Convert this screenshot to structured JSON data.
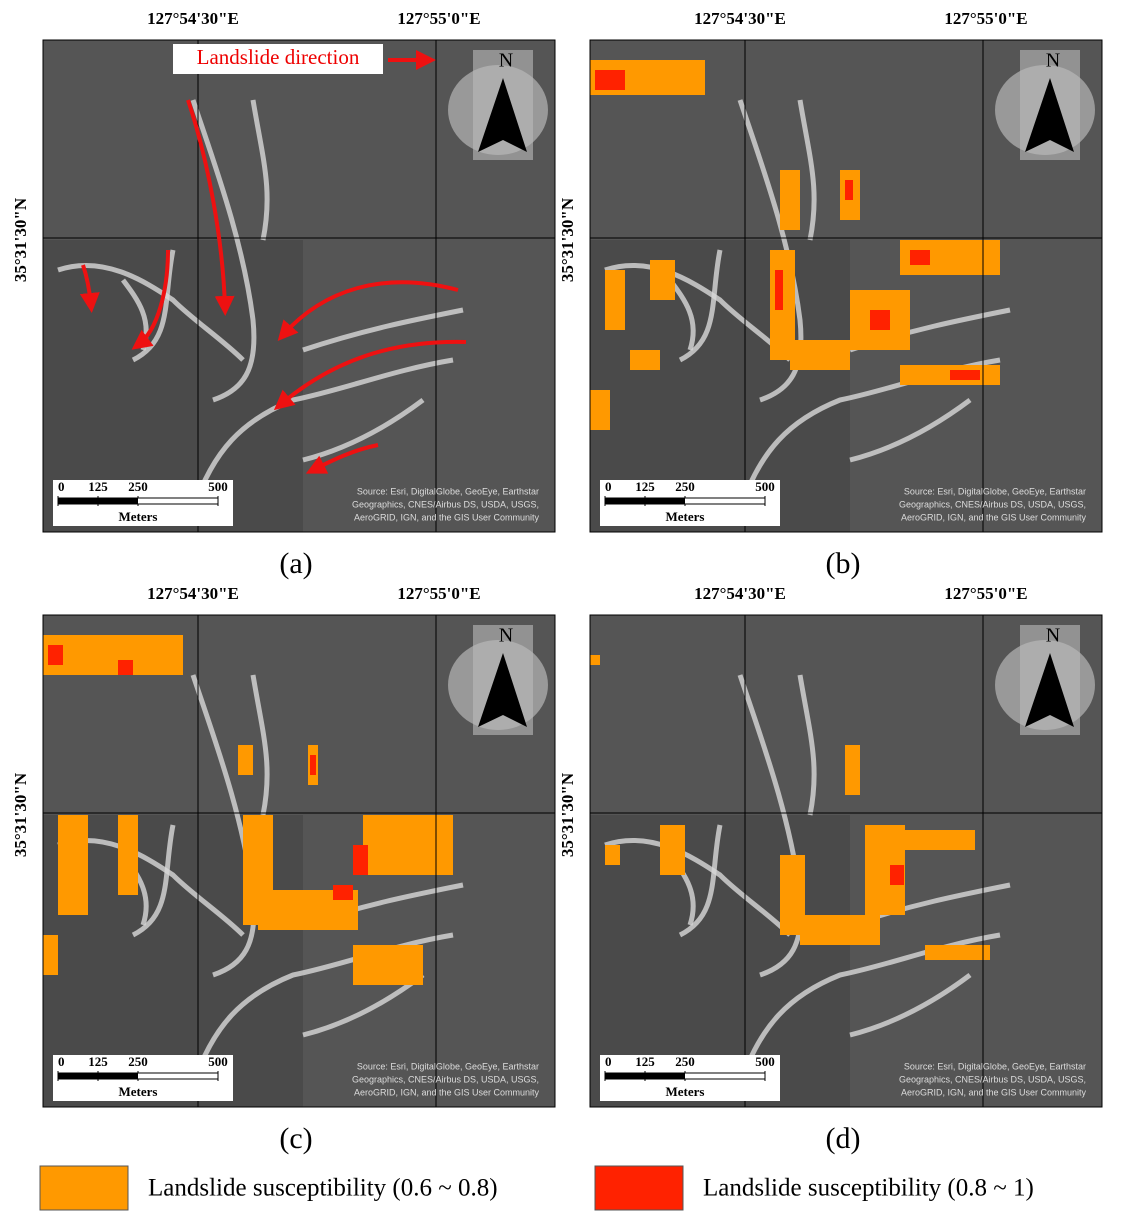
{
  "panels": [
    {
      "label": "(a)",
      "lon_labels": [
        "127°54'30\"E",
        "127°55'0\"E"
      ],
      "lat_label": "35°31'30\"N",
      "north": "N",
      "scale_ticks": [
        0,
        125,
        250,
        500
      ],
      "scale_unit": "Meters",
      "attribution": [
        "Source: Esri, DigitalGlobe, GeoEye, Earthstar",
        "Geographics, CNES/Airbus DS, USDA, USGS,",
        "AeroGRID, IGN, and the GIS User Community"
      ],
      "annotation": "Landslide direction"
    },
    {
      "label": "(b)",
      "lon_labels": [
        "127°54'30\"E",
        "127°55'0\"E"
      ],
      "lat_label": "35°31'30\"N",
      "north": "N",
      "scale_ticks": [
        0,
        125,
        250,
        500
      ],
      "scale_unit": "Meters",
      "attribution": [
        "Source: Esri, DigitalGlobe, GeoEye, Earthstar",
        "Geographics, CNES/Airbus DS, USDA, USGS,",
        "AeroGRID, IGN, and the GIS User Community"
      ]
    },
    {
      "label": "(c)",
      "lon_labels": [
        "127°54'30\"E",
        "127°55'0\"E"
      ],
      "lat_label": "35°31'30\"N",
      "north": "N",
      "scale_ticks": [
        0,
        125,
        250,
        500
      ],
      "scale_unit": "Meters",
      "attribution": [
        "Source: Esri, DigitalGlobe, GeoEye, Earthstar",
        "Geographics, CNES/Airbus DS, USDA, USGS,",
        "AeroGRID, IGN, and the GIS User Community"
      ]
    },
    {
      "label": "(d)",
      "lon_labels": [
        "127°54'30\"E",
        "127°55'0\"E"
      ],
      "lat_label": "35°31'30\"N",
      "north": "N",
      "scale_ticks": [
        0,
        125,
        250,
        500
      ],
      "scale_unit": "Meters",
      "attribution": [
        "Source: Esri, DigitalGlobe, GeoEye, Earthstar",
        "Geographics, CNES/Airbus DS, USDA, USGS,",
        "AeroGRID, IGN, and the GIS User Community"
      ]
    }
  ],
  "legend": [
    {
      "label": "Landslide susceptibility (0.6 ~ 0.8)",
      "color": "#ff9900"
    },
    {
      "label": "Landslide susceptibility (0.8 ~ 1)",
      "color": "#ff2200"
    }
  ]
}
